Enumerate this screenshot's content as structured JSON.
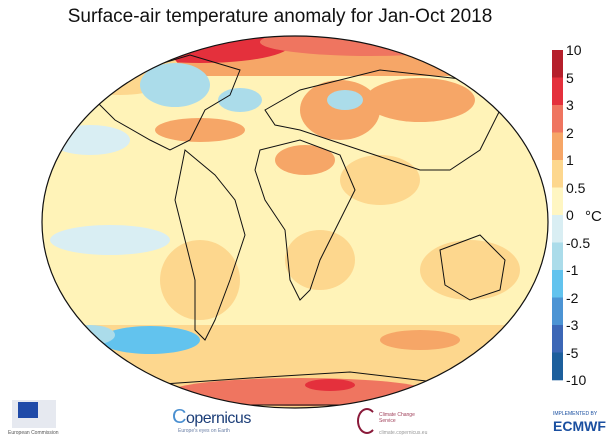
{
  "title": "Surface-air temperature anomaly for Jan-Oct 2018",
  "colorbar": {
    "unit": "°C",
    "labels": [
      "10",
      "5",
      "3",
      "2",
      "1",
      "0.5",
      "0",
      "-0.5",
      "-1",
      "-2",
      "-3",
      "-5",
      "-10"
    ],
    "colors": [
      "#b51f2b",
      "#e4303c",
      "#ef7560",
      "#f6a667",
      "#fdd78e",
      "#fff6c2",
      "#d9eef3",
      "#abdcea",
      "#62c3ee",
      "#4c94d4",
      "#3c67b6",
      "#1d5f9c"
    ]
  },
  "map": {
    "background": "#fff3b8",
    "land_outline": "#111111"
  },
  "logos": {
    "eu": "European Commission",
    "copernicus": "opernicus",
    "copernicus_c": "C",
    "copernicus_sub": "Europe's eyes on Earth",
    "c3s": "Climate Change Service",
    "c3s_url": "climate.copernicus.eu",
    "ecmwf_pre": "IMPLEMENTED BY",
    "ecmwf": "ECMWF"
  }
}
